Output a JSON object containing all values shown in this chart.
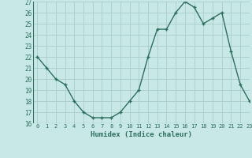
{
  "x": [
    0,
    1,
    2,
    3,
    4,
    5,
    6,
    7,
    8,
    9,
    10,
    11,
    12,
    13,
    14,
    15,
    16,
    17,
    18,
    19,
    20,
    21,
    22,
    23
  ],
  "y": [
    22,
    21,
    20,
    19.5,
    18,
    17,
    16.5,
    16.5,
    16.5,
    17,
    18,
    19,
    22,
    24.5,
    24.5,
    26,
    27,
    26.5,
    25,
    25.5,
    26,
    22.5,
    19.5,
    18
  ],
  "line_color": "#2d6e5e",
  "marker": "+",
  "bg_color": "#c8e8e8",
  "grid_color": "#aacccc",
  "xlabel": "Humidex (Indice chaleur)",
  "ylim": [
    16,
    27
  ],
  "xlim": [
    -0.5,
    23
  ],
  "yticks": [
    16,
    17,
    18,
    19,
    20,
    21,
    22,
    23,
    24,
    25,
    26,
    27
  ],
  "xticks": [
    0,
    1,
    2,
    3,
    4,
    5,
    6,
    7,
    8,
    9,
    10,
    11,
    12,
    13,
    14,
    15,
    16,
    17,
    18,
    19,
    20,
    21,
    22,
    23
  ],
  "xtick_labels": [
    "0",
    "1",
    "2",
    "3",
    "4",
    "5",
    "6",
    "7",
    "8",
    "9",
    "10",
    "11",
    "12",
    "13",
    "14",
    "15",
    "16",
    "17",
    "18",
    "19",
    "20",
    "21",
    "22",
    "23"
  ]
}
